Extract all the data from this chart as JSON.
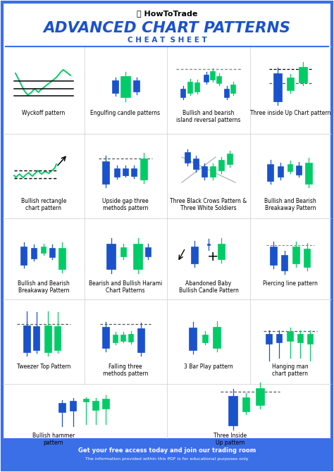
{
  "title": "ADVANCED CHART PATTERNS",
  "subtitle": "C H E A T  S H E E T",
  "logo_text": "HowToTrade",
  "border_color": "#3B6FE8",
  "bg_color": "#FFFFFF",
  "footer_bg": "#3B6FE8",
  "footer_text": "Get your free access today and join our trading room",
  "footer_subtext": "The information provided within this PDF is for educational purposes only",
  "blue_color": "#1A52CC",
  "green_color": "#00CC66",
  "title_color": "#1A52CC",
  "subtitle_color": "#1A52CC",
  "row_bg_even": "#EBF0FD",
  "row_bg_odd": "#FFFFFF"
}
